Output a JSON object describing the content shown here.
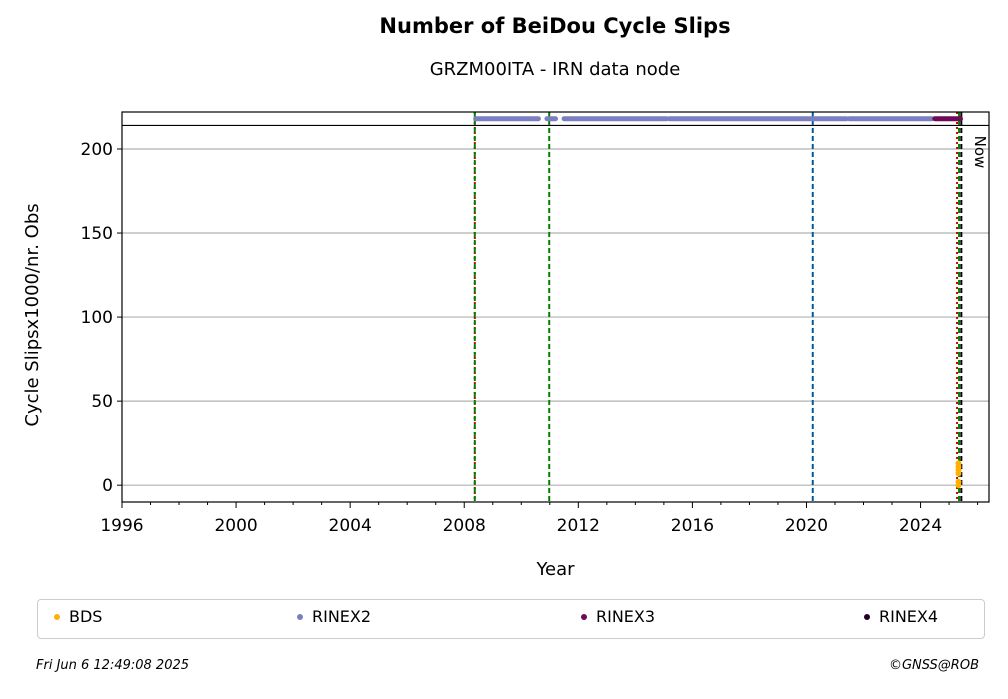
{
  "chart_data": {
    "type": "scatter",
    "title": "Number of BeiDou Cycle Slips",
    "subtitle": "GRZM00ITA - IRN data node",
    "xlabel": "Year",
    "ylabel": "Cycle Slipsx1000/nr. Obs",
    "xlim": [
      1996,
      2026.4
    ],
    "ylim": [
      -10,
      222
    ],
    "x_ticks": [
      1996,
      2000,
      2004,
      2008,
      2012,
      2016,
      2020,
      2024
    ],
    "y_ticks": [
      0,
      50,
      100,
      150,
      200
    ],
    "grid": "horizontal",
    "top_strip_y": 218,
    "top_strip_floor": 214,
    "now_label": "Now",
    "legend_position": "bottom",
    "series": [
      {
        "name": "BDS",
        "color": "#ffb000",
        "points": [
          [
            2025.33,
            13
          ],
          [
            2025.33,
            11
          ],
          [
            2025.33,
            9
          ],
          [
            2025.33,
            7
          ],
          [
            2025.33,
            2
          ],
          [
            2025.33,
            0
          ]
        ]
      },
      {
        "name": "RINEX2",
        "color": "#7b7fc0",
        "segments": [
          [
            2008.4,
            2010.6
          ],
          [
            2010.9,
            2011.2
          ],
          [
            2011.5,
            2015.1
          ],
          [
            2015.2,
            2021.4
          ],
          [
            2021.5,
            2024.4
          ]
        ]
      },
      {
        "name": "RINEX3",
        "color": "#6e0a57",
        "segments": [
          [
            2024.5,
            2025.4
          ]
        ]
      },
      {
        "name": "RINEX4",
        "color": "#240028",
        "segments": []
      }
    ],
    "vlines": [
      {
        "x": 2008.37,
        "color": "#cc0000",
        "style": "dotted"
      },
      {
        "x": 2008.37,
        "color": "#008000",
        "style": "dashed"
      },
      {
        "x": 2010.98,
        "color": "#008000",
        "style": "dashed"
      },
      {
        "x": 2020.22,
        "color": "#005aa0",
        "style": "dashed"
      },
      {
        "x": 2025.28,
        "color": "#cc0000",
        "style": "dotted"
      },
      {
        "x": 2025.35,
        "color": "#008000",
        "style": "dashed"
      },
      {
        "x": 2025.43,
        "color": "#000000",
        "style": "dashed"
      }
    ]
  },
  "legend": {
    "items": [
      {
        "label": "BDS",
        "color": "#ffb000"
      },
      {
        "label": "RINEX2",
        "color": "#7b7fc0"
      },
      {
        "label": "RINEX3",
        "color": "#6e0a57"
      },
      {
        "label": "RINEX4",
        "color": "#240028"
      }
    ]
  },
  "footer": {
    "timestamp": "Fri Jun  6 12:49:08 2025",
    "credit": "©GNSS@ROB"
  }
}
